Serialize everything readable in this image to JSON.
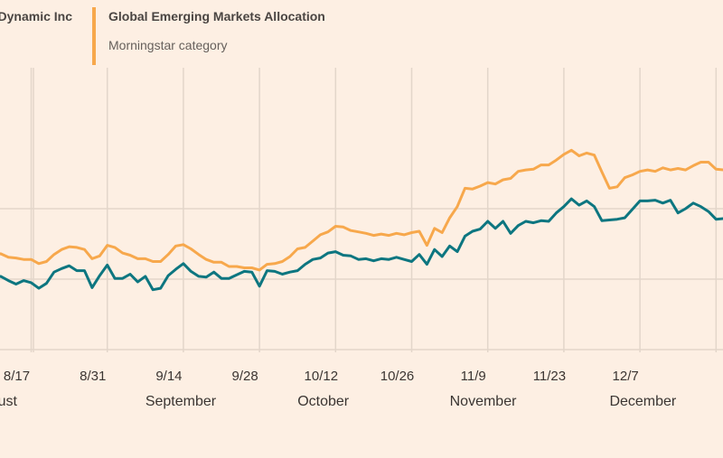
{
  "legend": {
    "fund": {
      "name": "...Dynamic Inc",
      "color": "#0d7680"
    },
    "category": {
      "name": "Global Emerging Markets Allocation",
      "subtitle": "Morningstar category",
      "color": "#f7a84c"
    }
  },
  "chart_data": {
    "type": "line",
    "title": "",
    "xlabel": "",
    "ylabel": "",
    "ylim": [
      86,
      114
    ],
    "grid": true,
    "y_gridlines": [
      90,
      100,
      110
    ],
    "x_ticks": [
      {
        "label": "8/17",
        "index": 6
      },
      {
        "label": "8/31",
        "index": 16
      },
      {
        "label": "9/14",
        "index": 26
      },
      {
        "label": "9/28",
        "index": 36
      },
      {
        "label": "10/12",
        "index": 46
      },
      {
        "label": "10/26",
        "index": 56
      },
      {
        "label": "11/9",
        "index": 66
      },
      {
        "label": "11/23",
        "index": 76
      },
      {
        "label": "12/7",
        "index": 86
      }
    ],
    "months": [
      {
        "label": "August",
        "index": 1
      },
      {
        "label": "September",
        "index": 21
      },
      {
        "label": "October",
        "index": 41
      },
      {
        "label": "November",
        "index": 61
      },
      {
        "label": "December",
        "index": 82
      }
    ],
    "series": [
      {
        "name": "...Dynamic Inc",
        "color": "#0d7680",
        "values": [
          100,
          100.1,
          100.4,
          99.8,
          99.3,
          99.8,
          99.5,
          98.7,
          99.4,
          101,
          101.5,
          101.9,
          101.2,
          101.2,
          98.8,
          100.5,
          102,
          100.1,
          100.1,
          100.7,
          99.6,
          100.4,
          98.5,
          98.7,
          100.5,
          101.4,
          102.2,
          101.1,
          100.4,
          100.3,
          101,
          100.1,
          100.1,
          100.6,
          101.1,
          101,
          99,
          101.2,
          101.1,
          100.7,
          101,
          101.2,
          102.1,
          102.8,
          103,
          103.7,
          103.9,
          103.4,
          103.3,
          102.8,
          102.9,
          102.6,
          102.9,
          102.8,
          103.1,
          102.8,
          102.5,
          103.5,
          102.1,
          104.2,
          103.2,
          104.7,
          103.9,
          106.1,
          106.8,
          107.1,
          108.2,
          107.2,
          108.2,
          106.5,
          107.6,
          108.2,
          108,
          108.3,
          108.2,
          109.4,
          110.3,
          111.4,
          110.5,
          111.1,
          110.3,
          108.3,
          108.4,
          108.5,
          108.7,
          109.9,
          111.1,
          111.1,
          111.2,
          110.8,
          111.2,
          109.4,
          110,
          110.8,
          110.3,
          109.6,
          108.5,
          108.6
        ]
      },
      {
        "name": "Global Emerging Markets Allocation",
        "color": "#f7a84c",
        "values": [
          103,
          103.4,
          103.6,
          103.1,
          103,
          102.8,
          102.8,
          102.2,
          102.5,
          103.5,
          104.2,
          104.6,
          104.5,
          104.2,
          102.9,
          103.3,
          104.8,
          104.5,
          103.7,
          103.4,
          102.9,
          102.9,
          102.5,
          102.5,
          103.5,
          104.7,
          104.9,
          104.3,
          103.5,
          102.8,
          102.4,
          102.4,
          101.8,
          101.8,
          101.6,
          101.6,
          101.3,
          102.1,
          102.2,
          102.5,
          103.2,
          104.3,
          104.5,
          105.4,
          106.3,
          106.7,
          107.5,
          107.4,
          106.9,
          106.7,
          106.5,
          106.2,
          106.4,
          106.2,
          106.5,
          106.3,
          106.6,
          106.8,
          104.8,
          107.2,
          106.6,
          108.7,
          110.3,
          112.9,
          112.8,
          113.2,
          113.7,
          113.5,
          114.1,
          114.3,
          115.3,
          115.5,
          115.6,
          116.2,
          116.2,
          116.9,
          117.7,
          118.3,
          117.5,
          117.9,
          117.6,
          115.2,
          112.9,
          113.1,
          114.4,
          114.8,
          115.3,
          115.5,
          115.3,
          115.8,
          115.5,
          115.7,
          115.5,
          116.1,
          116.6,
          116.6,
          115.6,
          115.5
        ]
      }
    ]
  }
}
